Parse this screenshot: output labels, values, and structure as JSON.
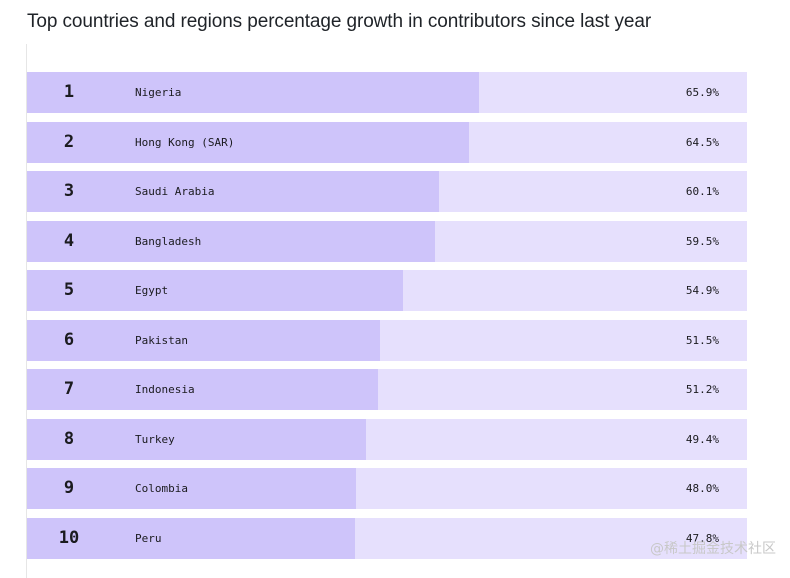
{
  "page": {
    "title": "Top countries and regions percentage growth in contributors since last year",
    "watermark": "@稀土掘金技术社区"
  },
  "chart_data": {
    "type": "bar",
    "orientation": "horizontal",
    "title": "Top countries and regions percentage growth in contributors since last year",
    "ranks": [
      "1",
      "2",
      "3",
      "4",
      "5",
      "6",
      "7",
      "8",
      "9",
      "10"
    ],
    "categories": [
      "Nigeria",
      "Hong Kong (SAR)",
      "Saudi Arabia",
      "Bangladesh",
      "Egypt",
      "Pakistan",
      "Indonesia",
      "Turkey",
      "Colombia",
      "Peru"
    ],
    "values": [
      65.9,
      64.5,
      60.1,
      59.5,
      54.9,
      51.5,
      51.2,
      49.4,
      48.0,
      47.8
    ],
    "value_labels": [
      "65.9%",
      "64.5%",
      "60.1%",
      "59.5%",
      "54.9%",
      "51.5%",
      "51.2%",
      "49.4%",
      "48.0%",
      "47.8%"
    ],
    "xlim": [
      0,
      105
    ],
    "colors": {
      "bar": "#cec4fa",
      "track": "#e6e0fd"
    },
    "grid": false,
    "legend": "none"
  }
}
